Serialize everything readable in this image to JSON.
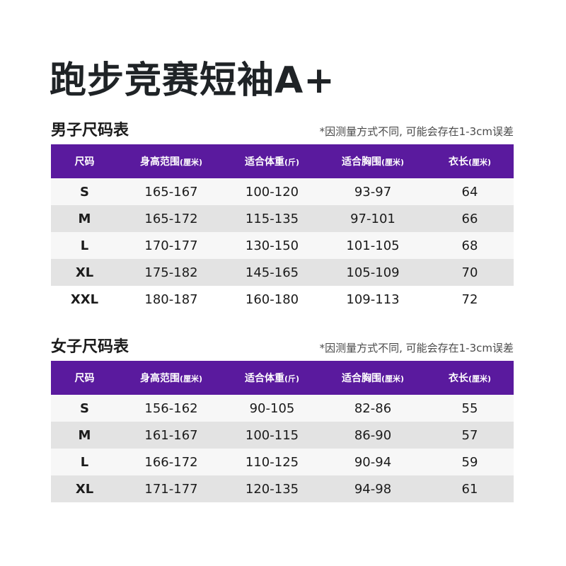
{
  "title": "跑步竞赛短袖A+",
  "men": {
    "heading": "男子尺码表",
    "note": "*因测量方式不同, 可能会存在1-3cm误差",
    "columns": [
      {
        "main": "尺码",
        "unit": ""
      },
      {
        "main": "身高范围",
        "unit": "(厘米)"
      },
      {
        "main": "适合体重",
        "unit": "(斤)"
      },
      {
        "main": "适合胸围",
        "unit": "(厘米)"
      },
      {
        "main": "衣长",
        "unit": "(厘米)"
      }
    ],
    "rows": [
      [
        "S",
        "165-167",
        "100-120",
        "93-97",
        "64"
      ],
      [
        "M",
        "165-172",
        "115-135",
        "97-101",
        "66"
      ],
      [
        "L",
        "170-177",
        "130-150",
        "101-105",
        "68"
      ],
      [
        "XL",
        "175-182",
        "145-165",
        "105-109",
        "70"
      ],
      [
        "XXL",
        "180-187",
        "160-180",
        "109-113",
        "72"
      ]
    ]
  },
  "women": {
    "heading": "女子尺码表",
    "note": "*因测量方式不同, 可能会存在1-3cm误差",
    "columns": [
      {
        "main": "尺码",
        "unit": ""
      },
      {
        "main": "身高范围",
        "unit": "(厘米)"
      },
      {
        "main": "适合体重",
        "unit": "(斤)"
      },
      {
        "main": "适合胸围",
        "unit": "(厘米)"
      },
      {
        "main": "衣长",
        "unit": "(厘米)"
      }
    ],
    "rows": [
      [
        "S",
        "156-162",
        "90-105",
        "82-86",
        "55"
      ],
      [
        "M",
        "161-167",
        "100-115",
        "86-90",
        "57"
      ],
      [
        "L",
        "166-172",
        "110-125",
        "90-94",
        "59"
      ],
      [
        "XL",
        "171-177",
        "120-135",
        "94-98",
        "61"
      ]
    ]
  },
  "colors": {
    "header_bg": "#5a1a9e",
    "row_light": "#f7f7f7",
    "row_dark": "#e3e3e3",
    "title_text": "#1f2326"
  }
}
